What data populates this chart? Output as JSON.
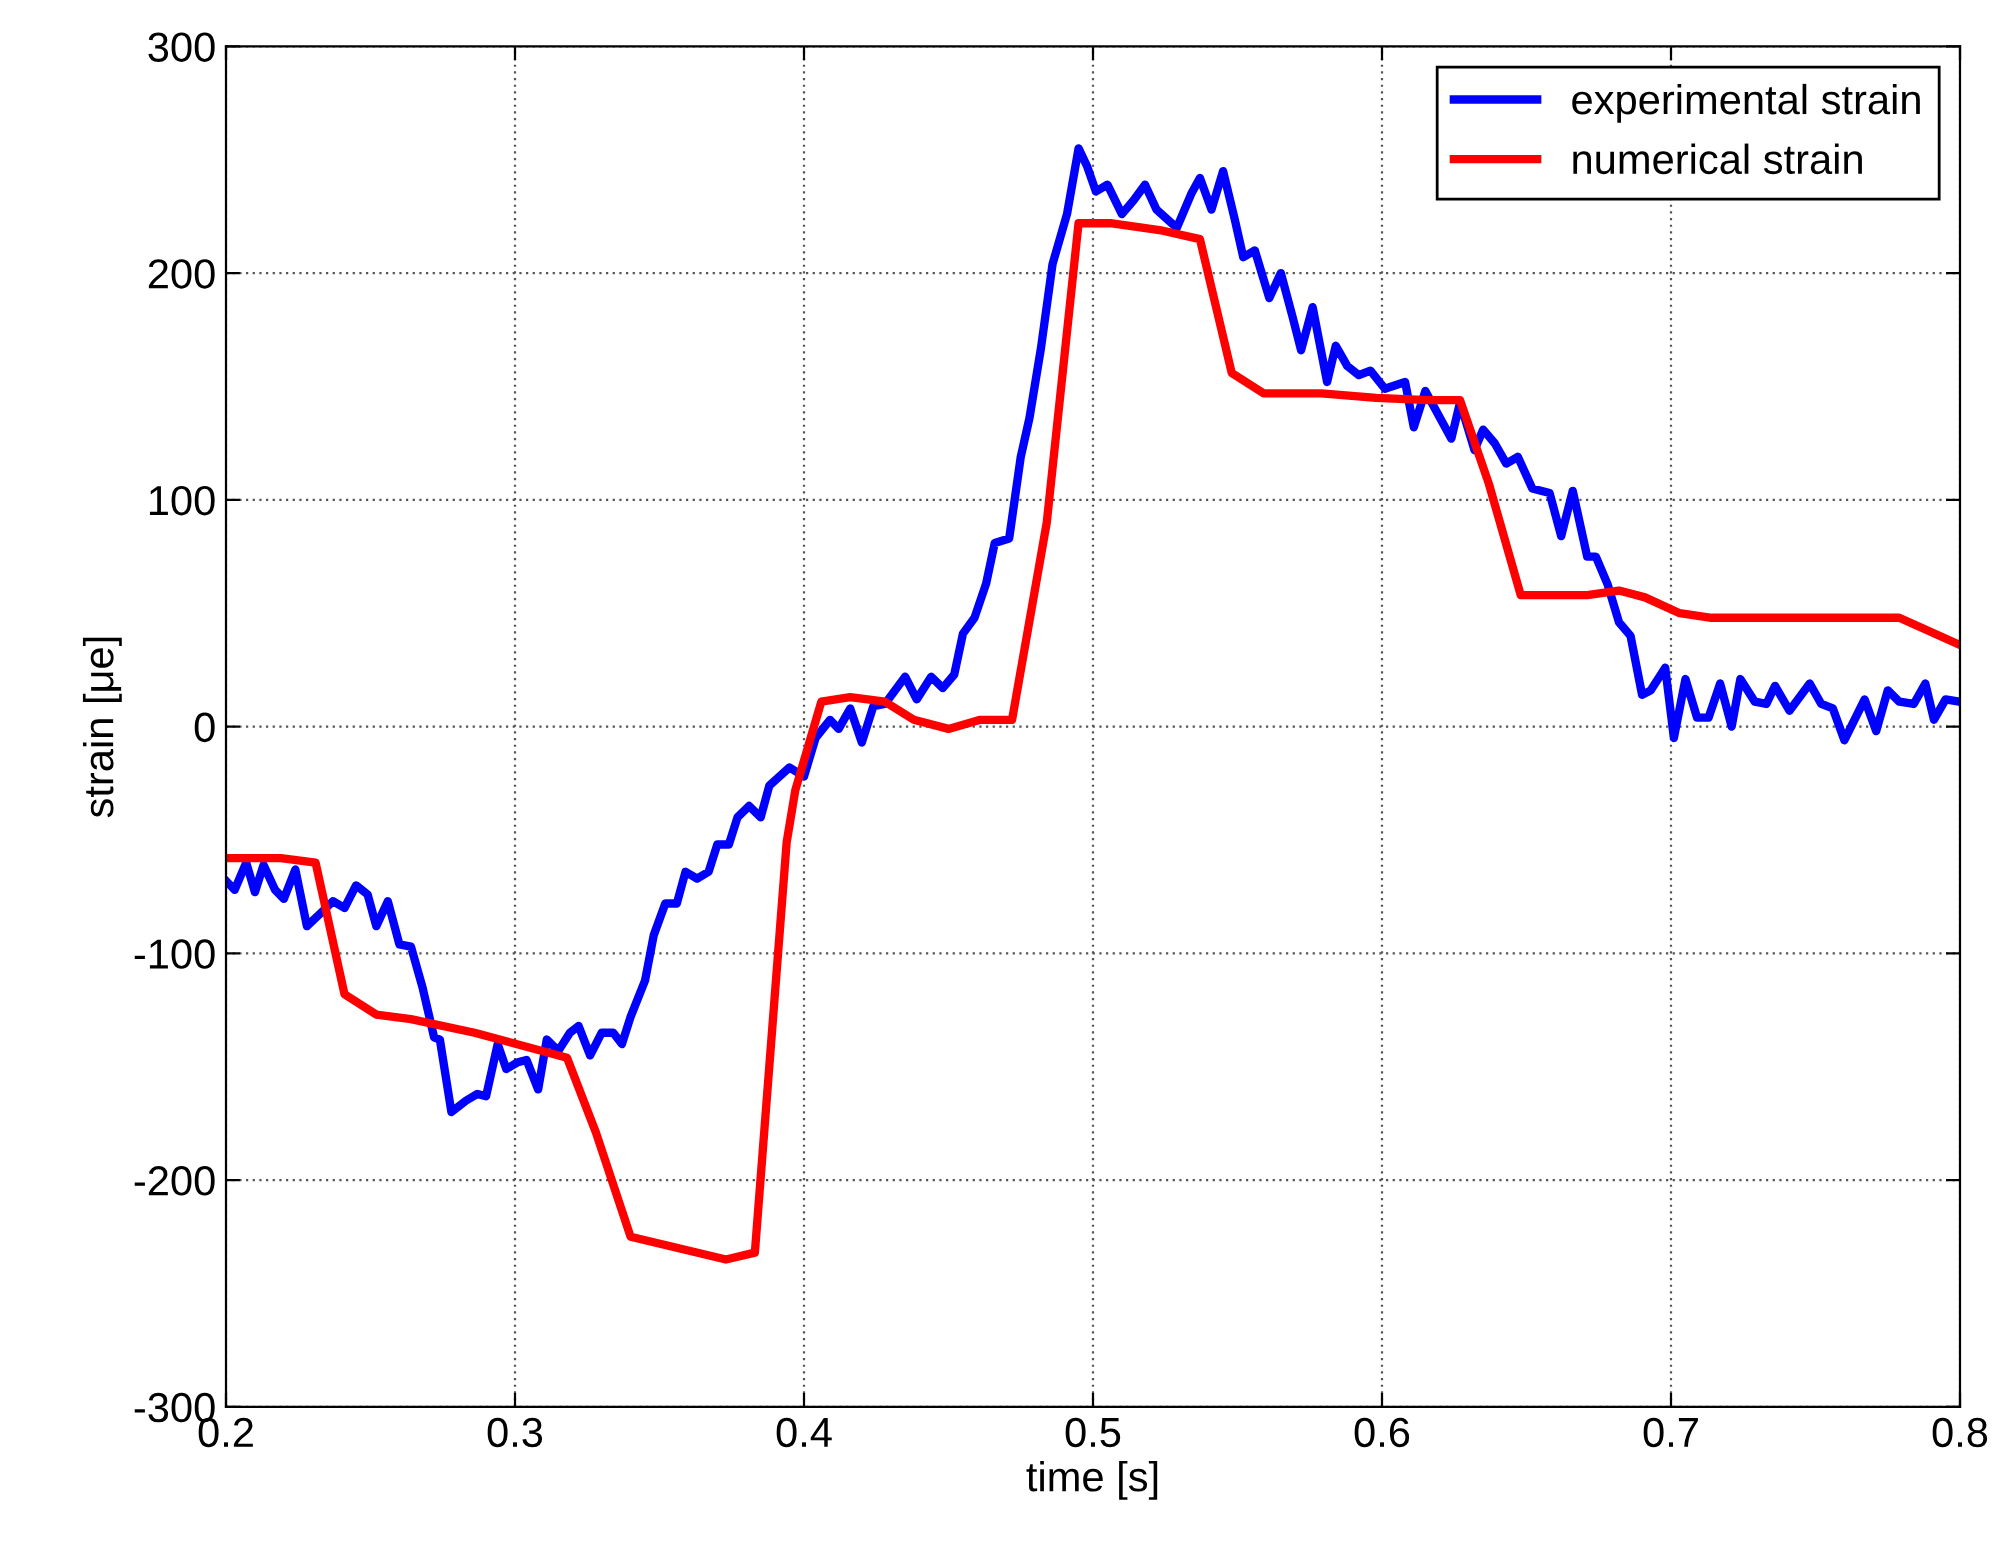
{
  "chart_data": {
    "type": "line",
    "xlabel": "time [s]",
    "ylabel": "strain [μe]",
    "xlim": [
      0.2,
      0.8
    ],
    "xticks": [
      0.2,
      0.3,
      0.4,
      0.5,
      0.6,
      0.7,
      0.8
    ],
    "ylim": [
      -300,
      300
    ],
    "yticks": [
      -300,
      -200,
      -100,
      0,
      100,
      200,
      300
    ],
    "grid": true,
    "legend": "top right",
    "line_style": "solid",
    "series": [
      {
        "name": "experimental strain",
        "color": "#0000ff",
        "x": [
          0.2,
          0.203,
          0.207,
          0.21,
          0.213,
          0.217,
          0.22,
          0.224,
          0.228,
          0.233,
          0.237,
          0.241,
          0.245,
          0.249,
          0.252,
          0.256,
          0.26,
          0.264,
          0.268,
          0.272,
          0.274,
          0.278,
          0.283,
          0.287,
          0.29,
          0.294,
          0.297,
          0.301,
          0.304,
          0.308,
          0.311,
          0.315,
          0.319,
          0.322,
          0.326,
          0.33,
          0.334,
          0.337,
          0.34,
          0.345,
          0.348,
          0.352,
          0.356,
          0.359,
          0.363,
          0.367,
          0.37,
          0.374,
          0.377,
          0.381,
          0.385,
          0.388,
          0.395,
          0.4,
          0.404,
          0.409,
          0.412,
          0.416,
          0.42,
          0.424,
          0.428,
          0.435,
          0.439,
          0.444,
          0.448,
          0.452,
          0.455,
          0.459,
          0.463,
          0.466,
          0.471,
          0.475,
          0.478,
          0.482,
          0.486,
          0.491,
          0.495,
          0.498,
          0.501,
          0.505,
          0.51,
          0.514,
          0.518,
          0.522,
          0.529,
          0.534,
          0.537,
          0.541,
          0.545,
          0.549,
          0.552,
          0.556,
          0.561,
          0.565,
          0.569,
          0.572,
          0.576,
          0.581,
          0.584,
          0.588,
          0.592,
          0.596,
          0.601,
          0.608,
          0.611,
          0.615,
          0.624,
          0.627,
          0.632,
          0.635,
          0.639,
          0.643,
          0.647,
          0.652,
          0.658,
          0.662,
          0.666,
          0.671,
          0.674,
          0.678,
          0.682,
          0.686,
          0.69,
          0.693,
          0.698,
          0.701,
          0.705,
          0.709,
          0.713,
          0.717,
          0.721,
          0.724,
          0.729,
          0.733,
          0.736,
          0.741,
          0.748,
          0.752,
          0.756,
          0.76,
          0.767,
          0.771,
          0.775,
          0.779,
          0.784,
          0.788,
          0.791,
          0.795,
          0.8
        ],
        "values": [
          -68,
          -72,
          -60,
          -73,
          -61,
          -72,
          -76,
          -63,
          -88,
          -82,
          -77,
          -80,
          -70,
          -74,
          -88,
          -77,
          -96,
          -97,
          -115,
          -137,
          -138,
          -170,
          -165,
          -162,
          -163,
          -140,
          -151,
          -148,
          -147,
          -160,
          -138,
          -143,
          -135,
          -132,
          -145,
          -135,
          -135,
          -140,
          -128,
          -112,
          -92,
          -78,
          -78,
          -64,
          -67,
          -64,
          -52,
          -52,
          -40,
          -35,
          -40,
          -26,
          -18,
          -22,
          -5,
          3,
          -1,
          8,
          -7,
          9,
          10,
          22,
          12,
          22,
          17,
          23,
          41,
          48,
          63,
          81,
          83,
          119,
          136,
          167,
          204,
          226,
          255,
          247,
          236,
          239,
          226,
          232,
          239,
          228,
          220,
          235,
          242,
          228,
          245,
          224,
          207,
          210,
          189,
          200,
          181,
          166,
          185,
          152,
          168,
          159,
          155,
          157,
          149,
          152,
          132,
          148,
          127,
          143,
          122,
          131,
          125,
          116,
          119,
          105,
          103,
          84,
          104,
          75,
          75,
          63,
          46,
          40,
          14,
          16,
          26,
          -5,
          21,
          4,
          4,
          19,
          0,
          21,
          11,
          10,
          18,
          7,
          19,
          10,
          8,
          -6,
          12,
          -2,
          16,
          11,
          10,
          19,
          3,
          12,
          11
        ]
      },
      {
        "name": "numerical strain",
        "color": "#ff0000",
        "x": [
          0.2,
          0.219,
          0.231,
          0.241,
          0.252,
          0.264,
          0.286,
          0.318,
          0.328,
          0.34,
          0.373,
          0.383,
          0.394,
          0.397,
          0.406,
          0.416,
          0.428,
          0.438,
          0.45,
          0.461,
          0.472,
          0.484,
          0.495,
          0.506,
          0.523,
          0.537,
          0.548,
          0.559,
          0.579,
          0.598,
          0.616,
          0.627,
          0.637,
          0.648,
          0.671,
          0.682,
          0.691,
          0.703,
          0.714,
          0.779,
          0.8
        ],
        "values": [
          -58,
          -58,
          -60,
          -118,
          -127,
          -129,
          -135,
          -146,
          -179,
          -225,
          -235,
          -232,
          -51,
          -28,
          11,
          13,
          11,
          3,
          -1,
          3,
          3,
          90,
          222,
          222,
          219,
          215,
          156,
          147,
          147,
          145,
          144,
          144,
          107,
          58,
          58,
          60,
          57,
          50,
          48,
          48,
          36
        ]
      }
    ]
  }
}
